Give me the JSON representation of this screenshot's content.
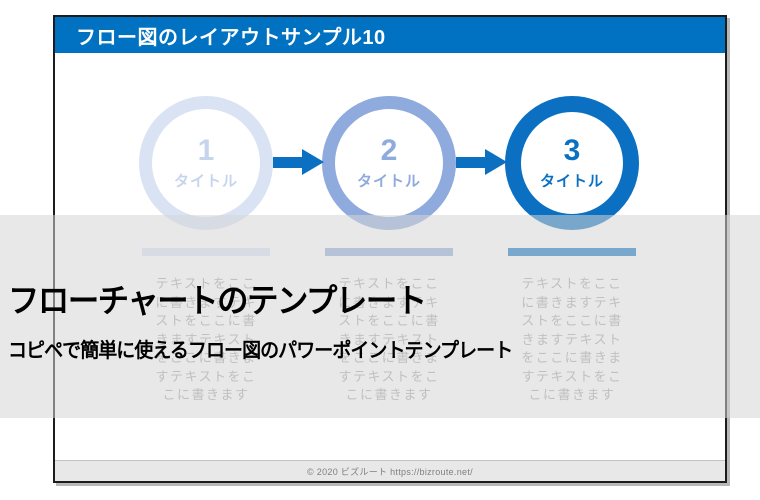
{
  "slide": {
    "title_bar": {
      "title": "フロー図のレイアウトサンプル10"
    },
    "steps": [
      {
        "number": "1",
        "label": "タイトル",
        "ring_color": "#DAE3F3",
        "ring_width": 13,
        "text_color": "#C7D4ED",
        "bar_color": "#DAE3F3",
        "body": "テキストをここ\nに書きますテキ\nストをここに書\nきますテキスト\nをここに書きま\nすテキストをこ\nこに書きます"
      },
      {
        "number": "2",
        "label": "タイトル",
        "ring_color": "#8FAADC",
        "ring_width": 13,
        "text_color": "#8FAADC",
        "bar_color": "#8FAADC",
        "body": "テキストをここ\nに書きますテキ\nストをここに書\nきますテキスト\nをここに書きま\nすテキストをこ\nこに書きます"
      },
      {
        "number": "3",
        "label": "タイトル",
        "ring_color": "#0B70C2",
        "ring_width": 16,
        "text_color": "#0B70C2",
        "bar_color": "#0D71C0",
        "body": "テキストをここ\nに書きますテキ\nストをここに書\nきますテキスト\nをここに書きま\nすテキストをこ\nこに書きます"
      }
    ],
    "footer": {
      "text": "© 2020 ビズルート https://bizroute.net/"
    }
  },
  "caption": {
    "title": "フローチャートのテンプレート",
    "subtitle": "コピペで簡単に使えるフロー図のパワーポイントテンプレート"
  },
  "colors": {
    "header_bg": "#0171C1",
    "header_text": "#FFFFFF",
    "arrow": "#0B70C2",
    "overlay_band": "rgba(213,213,213,0.55)",
    "body_text": "#A6A6A6",
    "footer_bg": "#E8E8E8",
    "footer_text": "#7F7F7F",
    "caption_text": "#000000"
  }
}
